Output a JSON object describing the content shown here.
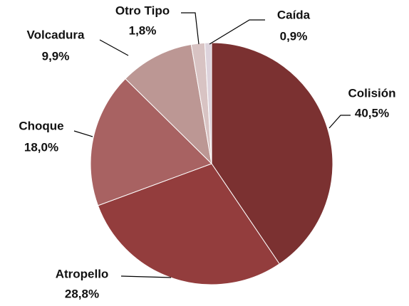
{
  "chart_data": {
    "type": "pie",
    "categories": [
      "Colisión",
      "Atropello",
      "Choque",
      "Volcadura",
      "Otro Tipo",
      "Caída"
    ],
    "values": [
      40.5,
      28.8,
      18.0,
      9.9,
      1.8,
      0.9
    ],
    "value_labels": [
      "40,5%",
      "28,8%",
      "18,0%",
      "9,9%",
      "1,8%",
      "0,9%"
    ],
    "colors": [
      "#7b3131",
      "#933d3d",
      "#a86262",
      "#bc9794",
      "#d8c3c3",
      "#ddd3dc"
    ]
  }
}
